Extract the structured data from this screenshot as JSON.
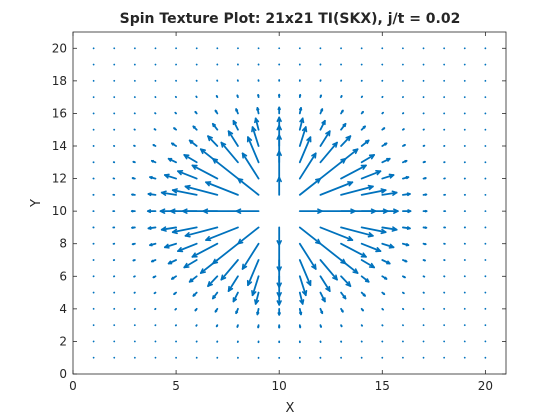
{
  "chart_data": {
    "type": "quiver",
    "title": "Spin Texture Plot: 21x21 TI(SKX), j/t = 0.02",
    "xlabel": "X",
    "ylabel": "Y",
    "xlim": [
      0,
      21
    ],
    "ylim": [
      0,
      21
    ],
    "xticks": [
      0,
      5,
      10,
      15,
      20
    ],
    "yticks": [
      0,
      2,
      4,
      6,
      8,
      10,
      12,
      14,
      16,
      18,
      20
    ],
    "grid": false,
    "legend": "none",
    "series": [
      {
        "color": "#0072bd",
        "grid_x": [
          1,
          2,
          3,
          4,
          5,
          6,
          7,
          8,
          9,
          10,
          11,
          12,
          13,
          14,
          15,
          16,
          17,
          18,
          19,
          20
        ],
        "grid_y": [
          1,
          2,
          3,
          4,
          5,
          6,
          7,
          8,
          9,
          10,
          11,
          12,
          13,
          14,
          15,
          16,
          17,
          18,
          19,
          20
        ],
        "center": [
          10,
          10
        ],
        "pattern": "radial-outward",
        "max_magnitude": 1.5,
        "magnitude_peak_radius": 3.5
      }
    ]
  }
}
